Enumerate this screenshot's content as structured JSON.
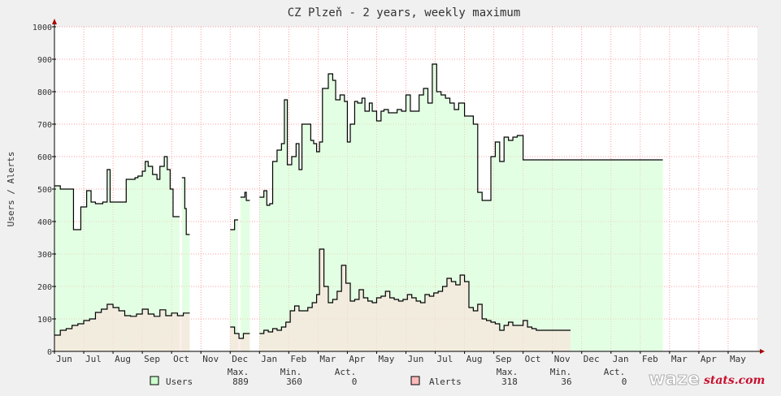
{
  "chart_data": {
    "type": "area",
    "title": "CZ Plzeň - 2 years, weekly maximum",
    "ylabel": "Users / Alerts",
    "ylim": [
      0,
      1000
    ],
    "yticks": [
      0,
      100,
      200,
      300,
      400,
      500,
      600,
      700,
      800,
      900,
      1000
    ],
    "xlim": [
      0,
      24
    ],
    "month_ticks": [
      "Jun",
      "Jul",
      "Aug",
      "Sep",
      "Oct",
      "Nov",
      "Dec",
      "Jan",
      "Feb",
      "Mar",
      "Apr",
      "May",
      "Jun",
      "Jul",
      "Aug",
      "Sep",
      "Oct",
      "Nov",
      "Dec",
      "Jan",
      "Feb",
      "Mar",
      "Apr",
      "May"
    ],
    "grid": true,
    "series": [
      {
        "name": "Users",
        "color": "#000000",
        "fill": "#ccffcc",
        "legend_color": "#ccffcc",
        "x": [
          0,
          0.2,
          0.3,
          0.55,
          0.65,
          0.9,
          1.0,
          1.1,
          1.25,
          1.4,
          1.55,
          1.65,
          1.8,
          1.9,
          2.0,
          2.1,
          2.3,
          2.45,
          2.6,
          2.75,
          2.85,
          3.0,
          3.1,
          3.2,
          3.35,
          3.5,
          3.6,
          3.75,
          3.85,
          3.95,
          4.05,
          4.15,
          4.25,
          4.35,
          4.45,
          4.5,
          null,
          6.0,
          6.15,
          6.25,
          6.35,
          6.5,
          6.55,
          null,
          7.0,
          7.15,
          7.25,
          7.35,
          7.45,
          7.6,
          7.75,
          7.85,
          7.95,
          8.1,
          8.25,
          8.35,
          8.45,
          8.55,
          8.65,
          8.75,
          8.85,
          8.95,
          9.05,
          9.15,
          9.25,
          9.35,
          9.5,
          9.6,
          9.75,
          9.9,
          10.0,
          10.1,
          10.25,
          10.35,
          10.5,
          10.6,
          10.75,
          10.85,
          11.0,
          11.15,
          11.25,
          11.4,
          11.55,
          11.7,
          11.85,
          12.0,
          12.15,
          12.3,
          12.45,
          12.6,
          12.75,
          12.9,
          13.05,
          13.2,
          13.35,
          13.5,
          13.65,
          13.8,
          14.0,
          14.15,
          14.3,
          14.45,
          14.6,
          14.75,
          14.9,
          15.05,
          15.2,
          15.35,
          15.5,
          15.65,
          15.8,
          16.0,
          16.1,
          16.25,
          16.4,
          16.55,
          16.7,
          16.85,
          17.0,
          17.15,
          17.3,
          17.45,
          17.6,
          17.75,
          17.9,
          18.05,
          18.2,
          18.35,
          18.5,
          18.65,
          18.8,
          18.95,
          19.1,
          19.25,
          19.4,
          19.55,
          19.7,
          19.85,
          20.0,
          20.15,
          20.25,
          20.35,
          20.45,
          20.55,
          20.65
        ],
        "values": [
          510,
          500,
          500,
          500,
          375,
          445,
          445,
          495,
          460,
          455,
          455,
          460,
          560,
          460,
          460,
          460,
          460,
          530,
          530,
          535,
          540,
          555,
          585,
          570,
          545,
          530,
          570,
          600,
          560,
          500,
          415,
          415,
          null,
          535,
          440,
          360,
          360,
          375,
          405,
          null,
          475,
          490,
          465,
          455,
          475,
          495,
          450,
          455,
          585,
          620,
          640,
          775,
          575,
          600,
          640,
          560,
          700,
          700,
          700,
          650,
          640,
          615,
          645,
          810,
          810,
          855,
          835,
          775,
          790,
          770,
          645,
          700,
          770,
          765,
          780,
          740,
          765,
          740,
          710,
          740,
          745,
          735,
          735,
          745,
          740,
          790,
          740,
          740,
          790,
          810,
          765,
          885,
          800,
          790,
          780,
          765,
          745,
          765,
          725,
          725,
          700,
          490,
          465,
          465,
          600,
          645,
          585,
          660,
          650,
          660,
          665,
          590,
          590,
          590,
          590,
          590,
          590,
          590,
          590,
          590,
          590,
          590,
          590,
          590,
          590,
          590,
          590,
          590,
          590,
          590,
          590,
          590,
          590,
          590,
          590,
          590,
          590,
          590,
          590,
          590,
          590,
          590,
          590,
          590,
          590
        ]
      },
      {
        "name": "Alerts",
        "color": "#000000",
        "fill": "#ffdddd",
        "legend_color": "#ffbbbb",
        "x": [
          0,
          0.2,
          0.4,
          0.6,
          0.8,
          1.0,
          1.2,
          1.4,
          1.6,
          1.8,
          2.0,
          2.2,
          2.4,
          2.6,
          2.8,
          3.0,
          3.2,
          3.4,
          3.6,
          3.8,
          4.0,
          4.2,
          4.4,
          4.5,
          null,
          6.0,
          6.15,
          6.3,
          6.45,
          6.55,
          null,
          7.0,
          7.15,
          7.3,
          7.45,
          7.6,
          7.75,
          7.9,
          8.05,
          8.2,
          8.35,
          8.5,
          8.65,
          8.8,
          8.95,
          9.05,
          9.2,
          9.35,
          9.5,
          9.65,
          9.8,
          9.95,
          10.1,
          10.25,
          10.4,
          10.55,
          10.7,
          10.85,
          11.0,
          11.15,
          11.3,
          11.45,
          11.6,
          11.75,
          11.9,
          12.05,
          12.2,
          12.35,
          12.5,
          12.65,
          12.8,
          12.95,
          13.1,
          13.25,
          13.4,
          13.55,
          13.7,
          13.85,
          14.0,
          14.15,
          14.3,
          14.45,
          14.6,
          14.75,
          14.9,
          15.05,
          15.2,
          15.35,
          15.5,
          15.65,
          15.8,
          16.0,
          16.15,
          16.3,
          16.45,
          16.6,
          16.75,
          16.9,
          17.05,
          17.2,
          17.35,
          17.5
        ],
        "values": [
          50,
          65,
          70,
          80,
          85,
          95,
          100,
          120,
          130,
          145,
          135,
          125,
          110,
          108,
          115,
          130,
          115,
          108,
          128,
          110,
          118,
          110,
          118,
          118,
          null,
          75,
          55,
          40,
          55,
          55,
          null,
          55,
          65,
          60,
          70,
          65,
          75,
          90,
          125,
          140,
          125,
          125,
          135,
          150,
          175,
          315,
          200,
          150,
          160,
          185,
          265,
          210,
          155,
          160,
          190,
          165,
          155,
          150,
          165,
          170,
          185,
          165,
          160,
          155,
          160,
          175,
          165,
          155,
          150,
          175,
          170,
          180,
          185,
          200,
          225,
          215,
          205,
          235,
          215,
          135,
          125,
          145,
          100,
          95,
          90,
          85,
          65,
          80,
          90,
          80,
          80,
          95,
          75,
          70,
          65,
          65,
          65,
          65,
          65,
          65,
          65,
          65
        ]
      }
    ],
    "legend": {
      "placement": "bottom",
      "headers": [
        "Max.",
        "Min.",
        "Act."
      ],
      "users": {
        "label": "Users",
        "max": "889",
        "min": "360",
        "act": "0"
      },
      "alerts": {
        "label": "Alerts",
        "max": "318",
        "min": "36",
        "act": "0"
      }
    }
  },
  "logo": {
    "part1": "waze",
    "part2": "stats.com"
  }
}
